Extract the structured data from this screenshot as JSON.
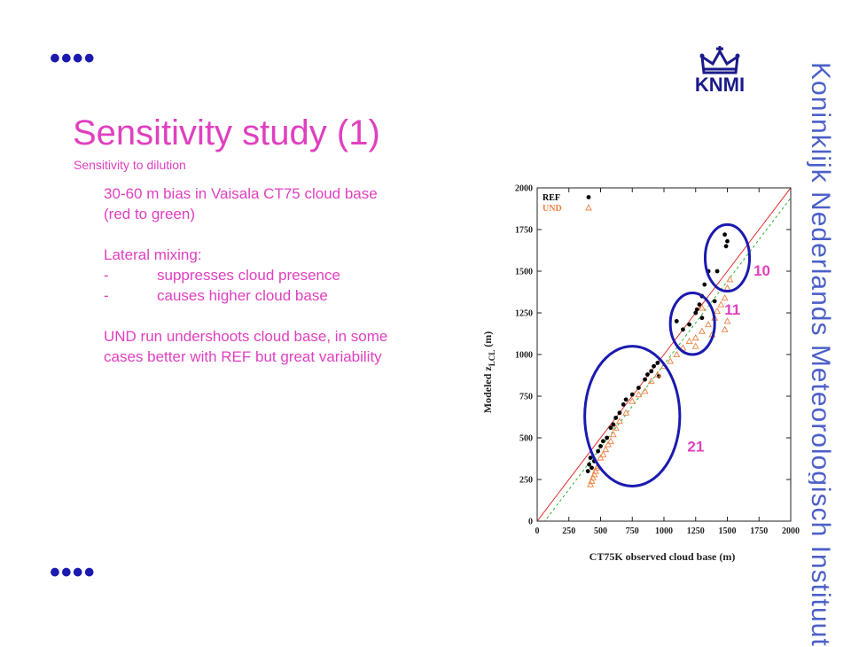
{
  "slide": {
    "dots": "••••",
    "title": "Sensitivity study (1)",
    "subtitle": "Sensitivity to dilution",
    "body_lines": [
      "30-60 m bias in Vaisala CT75 cloud base",
      "(red to green)",
      "",
      "Lateral mixing:",
      "-\tsuppresses cloud presence",
      "-\tcauses higher cloud base",
      "",
      "UND run undershoots cloud base, in some",
      "cases better with REF but great variability"
    ],
    "logo_text": "KNMI",
    "side_text": "Koninklijk Nederlands Meteorologisch Instituut",
    "colors": {
      "text": "#e040c0",
      "accent_blue": "#1a1ab0",
      "side_blue": "#4c60c8",
      "und": "#f08040",
      "ref": "#000000"
    }
  },
  "chart_data": {
    "type": "scatter",
    "xlabel": "CT75K observed cloud base (m)",
    "ylabel_main": "Modeled z",
    "ylabel_sub": "LCL",
    "ylabel_unit": " (m)",
    "xlim": [
      0,
      2000
    ],
    "ylim": [
      0,
      2000
    ],
    "xticks": [
      0,
      250,
      500,
      750,
      1000,
      1250,
      1500,
      1750,
      2000
    ],
    "yticks": [
      0,
      250,
      500,
      750,
      1000,
      1250,
      1500,
      1750,
      2000
    ],
    "grid": false,
    "legend_position": "top-left",
    "series": [
      {
        "name": "REF",
        "marker": "circle",
        "color": "#000000",
        "points": [
          [
            400,
            300
          ],
          [
            410,
            340
          ],
          [
            420,
            380
          ],
          [
            430,
            320
          ],
          [
            450,
            360
          ],
          [
            480,
            420
          ],
          [
            500,
            450
          ],
          [
            520,
            480
          ],
          [
            550,
            500
          ],
          [
            580,
            560
          ],
          [
            600,
            580
          ],
          [
            620,
            620
          ],
          [
            650,
            650
          ],
          [
            680,
            700
          ],
          [
            700,
            730
          ],
          [
            750,
            760
          ],
          [
            800,
            800
          ],
          [
            850,
            850
          ],
          [
            870,
            880
          ],
          [
            900,
            900
          ],
          [
            920,
            930
          ],
          [
            950,
            950
          ],
          [
            960,
            870
          ],
          [
            1100,
            1200
          ],
          [
            1150,
            1150
          ],
          [
            1200,
            1180
          ],
          [
            1250,
            1250
          ],
          [
            1260,
            1270
          ],
          [
            1280,
            1300
          ],
          [
            1300,
            1220
          ],
          [
            1300,
            1350
          ],
          [
            1320,
            1420
          ],
          [
            1350,
            1500
          ],
          [
            1420,
            1500
          ],
          [
            1480,
            1720
          ],
          [
            1490,
            1650
          ],
          [
            1500,
            1680
          ],
          [
            1400,
            1320
          ]
        ]
      },
      {
        "name": "UND",
        "marker": "triangle",
        "color": "#f08040",
        "points": [
          [
            420,
            220
          ],
          [
            430,
            240
          ],
          [
            440,
            260
          ],
          [
            450,
            280
          ],
          [
            460,
            300
          ],
          [
            470,
            320
          ],
          [
            480,
            330
          ],
          [
            500,
            380
          ],
          [
            520,
            400
          ],
          [
            540,
            430
          ],
          [
            560,
            460
          ],
          [
            580,
            480
          ],
          [
            600,
            520
          ],
          [
            620,
            560
          ],
          [
            650,
            600
          ],
          [
            700,
            650
          ],
          [
            750,
            720
          ],
          [
            800,
            760
          ],
          [
            850,
            780
          ],
          [
            900,
            840
          ],
          [
            950,
            880
          ],
          [
            1000,
            930
          ],
          [
            1050,
            960
          ],
          [
            1100,
            1000
          ],
          [
            1150,
            1040
          ],
          [
            1200,
            1080
          ],
          [
            1250,
            1100
          ],
          [
            1300,
            1140
          ],
          [
            1350,
            1180
          ],
          [
            1400,
            1220
          ],
          [
            1420,
            1260
          ],
          [
            1450,
            1300
          ],
          [
            1480,
            1340
          ],
          [
            1500,
            1400
          ],
          [
            1520,
            1450
          ],
          [
            1250,
            1050
          ],
          [
            1300,
            1280
          ],
          [
            1380,
            1120
          ],
          [
            1480,
            1150
          ],
          [
            1500,
            1200
          ]
        ]
      }
    ],
    "lines": [
      {
        "name": "1:1",
        "color": "#e03030",
        "dash": "solid",
        "x": [
          0,
          2000
        ],
        "y": [
          0,
          2000
        ]
      },
      {
        "name": "bias",
        "color": "#30b030",
        "dash": "dashed",
        "x": [
          0,
          2000
        ],
        "y": [
          -60,
          1940
        ]
      }
    ],
    "annotations": [
      {
        "label": "10",
        "cx": 1500,
        "cy": 1580,
        "rx": 175,
        "ry": 200
      },
      {
        "label": "11",
        "cx": 1225,
        "cy": 1185,
        "rx": 175,
        "ry": 185
      },
      {
        "label": "21",
        "cx": 750,
        "cy": 630,
        "rx": 375,
        "ry": 420
      }
    ]
  }
}
